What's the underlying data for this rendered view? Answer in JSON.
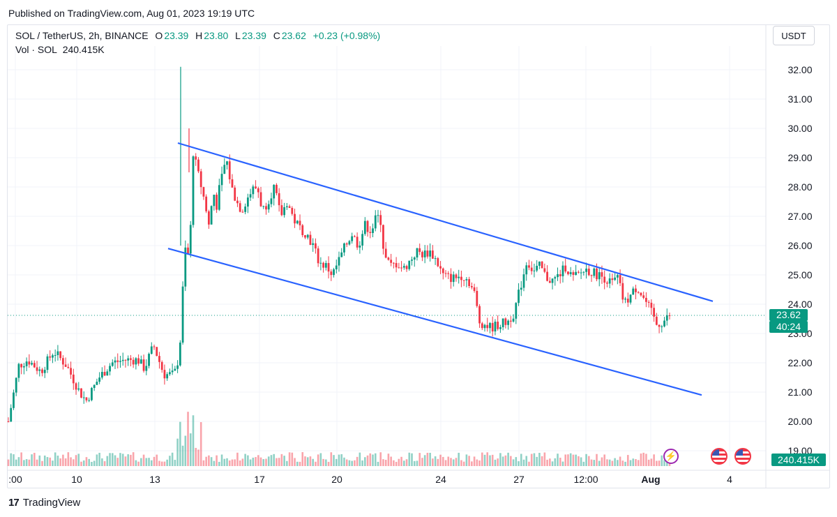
{
  "published": "Published on TradingView.com, Aug 01, 2023 19:19 UTC",
  "legend": {
    "symbol": "SOL / TetherUS, 2h, BINANCE",
    "o_label": "O",
    "o_value": "23.39",
    "h_label": "H",
    "h_value": "23.80",
    "l_label": "L",
    "l_value": "23.39",
    "c_label": "C",
    "c_value": "23.62",
    "change": "+0.23 (+0.98%)",
    "vol_label": "Vol · SOL",
    "vol_value": "240.415K"
  },
  "currency_button": "USDT",
  "price_label": {
    "price": "23.62",
    "countdown": "40:24"
  },
  "volume_label": "240.415K",
  "footer_brand": "TradingView",
  "colors": {
    "up": "#089981",
    "down": "#f23645",
    "channel": "#2962ff",
    "grid": "#f0f3fa"
  },
  "icons": [
    "lightning-icon",
    "us-flag-icon",
    "us-flag-icon"
  ],
  "chart_data": {
    "type": "candlestick",
    "y_ticks": [
      "32.00",
      "31.00",
      "30.00",
      "29.00",
      "28.00",
      "27.00",
      "26.00",
      "25.00",
      "24.00",
      "23.00",
      "22.00",
      "21.00",
      "20.00",
      "19.00"
    ],
    "x_ticks": [
      ":00",
      "10",
      "13",
      "17",
      "20",
      "24",
      "27",
      "12:00",
      "Aug",
      "4"
    ],
    "ylim": [
      19,
      32
    ],
    "current_price": 23.62,
    "price_path": [
      [
        0,
        20.0
      ],
      [
        8,
        21.9
      ],
      [
        15,
        22.1
      ],
      [
        25,
        21.7
      ],
      [
        35,
        22.4
      ],
      [
        45,
        21.9
      ],
      [
        55,
        21.0
      ],
      [
        60,
        20.7
      ],
      [
        70,
        21.5
      ],
      [
        80,
        22.0
      ],
      [
        90,
        22.1
      ],
      [
        100,
        22.1
      ],
      [
        105,
        21.8
      ],
      [
        112,
        22.6
      ],
      [
        120,
        21.6
      ],
      [
        128,
        21.6
      ],
      [
        132,
        22.3
      ],
      [
        134,
        24.0
      ],
      [
        136,
        25.9
      ],
      [
        140,
        25.6
      ],
      [
        142,
        29.3
      ],
      [
        146,
        28.5
      ],
      [
        150,
        27.8
      ],
      [
        155,
        26.6
      ],
      [
        158,
        28.0
      ],
      [
        160,
        27.2
      ],
      [
        163,
        28.0
      ],
      [
        168,
        29.0
      ],
      [
        172,
        28.0
      ],
      [
        176,
        27.5
      ],
      [
        180,
        27.2
      ],
      [
        184,
        27.6
      ],
      [
        188,
        27.9
      ],
      [
        192,
        28.0
      ],
      [
        196,
        27.2
      ],
      [
        200,
        27.5
      ],
      [
        205,
        28.0
      ],
      [
        210,
        27.0
      ],
      [
        215,
        27.5
      ],
      [
        220,
        26.9
      ],
      [
        225,
        26.6
      ],
      [
        230,
        26.4
      ],
      [
        235,
        26.0
      ],
      [
        240,
        25.4
      ],
      [
        245,
        25.3
      ],
      [
        250,
        25.0
      ],
      [
        255,
        25.5
      ],
      [
        260,
        26.0
      ],
      [
        265,
        26.4
      ],
      [
        270,
        26.0
      ],
      [
        275,
        26.7
      ],
      [
        280,
        26.5
      ],
      [
        284,
        27.0
      ],
      [
        287,
        26.9
      ],
      [
        290,
        25.6
      ],
      [
        295,
        25.3
      ],
      [
        300,
        25.4
      ],
      [
        305,
        25.2
      ],
      [
        310,
        25.5
      ],
      [
        315,
        25.8
      ],
      [
        320,
        25.7
      ],
      [
        325,
        25.8
      ],
      [
        330,
        25.5
      ],
      [
        335,
        25.0
      ],
      [
        340,
        24.9
      ],
      [
        345,
        24.9
      ],
      [
        350,
        25.0
      ],
      [
        355,
        24.8
      ],
      [
        360,
        24.3
      ],
      [
        363,
        23.4
      ],
      [
        368,
        23.3
      ],
      [
        372,
        23.2
      ],
      [
        378,
        23.3
      ],
      [
        385,
        23.4
      ],
      [
        390,
        23.7
      ],
      [
        395,
        24.6
      ],
      [
        400,
        25.5
      ],
      [
        405,
        25.1
      ],
      [
        410,
        25.3
      ],
      [
        415,
        24.9
      ],
      [
        420,
        24.8
      ],
      [
        425,
        25.0
      ],
      [
        430,
        25.3
      ],
      [
        435,
        24.9
      ],
      [
        440,
        25.0
      ],
      [
        445,
        25.2
      ],
      [
        450,
        25.1
      ],
      [
        455,
        25.0
      ],
      [
        460,
        24.9
      ],
      [
        465,
        24.7
      ],
      [
        470,
        24.9
      ],
      [
        475,
        24.0
      ],
      [
        480,
        24.3
      ],
      [
        485,
        24.6
      ],
      [
        490,
        24.2
      ],
      [
        495,
        23.8
      ],
      [
        500,
        23.3
      ],
      [
        505,
        23.4
      ],
      [
        510,
        23.6
      ]
    ],
    "channel_upper": [
      [
        29.5,
        "13"
      ],
      [
        24.1,
        "Aug+"
      ]
    ],
    "channel_lower": [
      [
        25.9,
        "13"
      ],
      [
        20.9,
        "Aug+"
      ]
    ]
  }
}
